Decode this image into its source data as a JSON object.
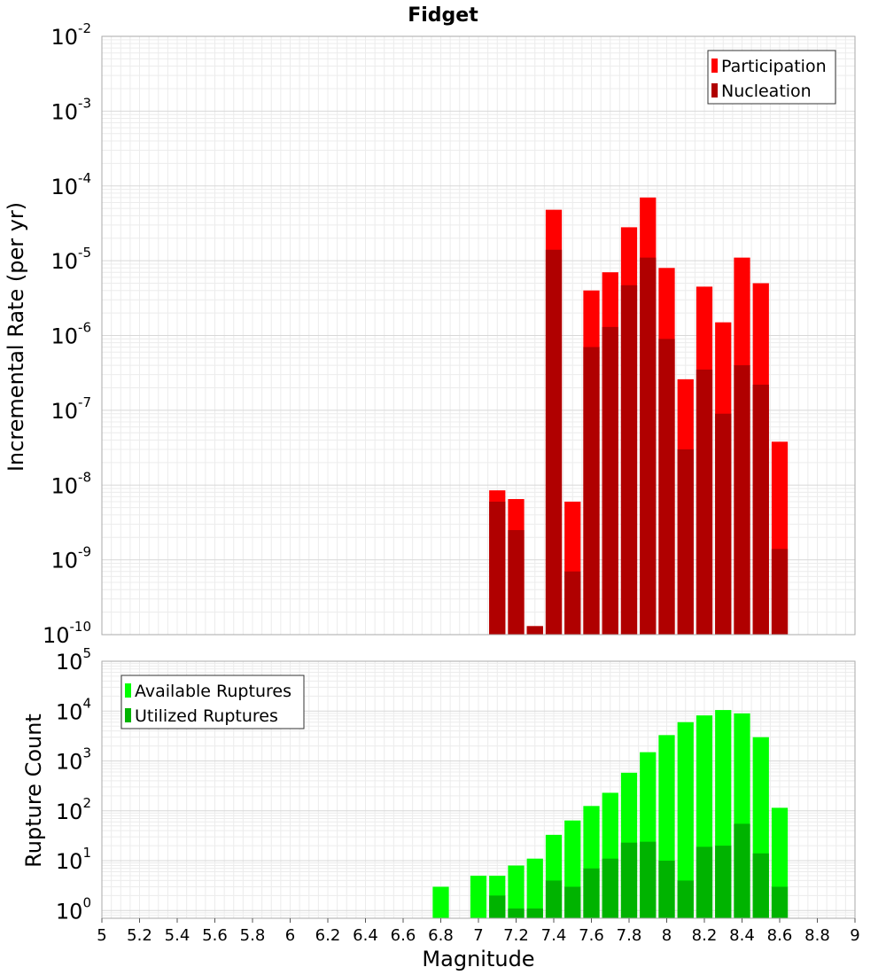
{
  "chart_data": [
    {
      "type": "bar",
      "title": "Fidget",
      "xlabel": "",
      "ylabel": "Incremental Rate (per yr)",
      "xlim": [
        5,
        9
      ],
      "ylim": [
        1e-10,
        0.01
      ],
      "yscale": "log",
      "grid": true,
      "legend_position": "top-right",
      "bar_width": 0.1,
      "y_ticks": [
        {
          "base": "10",
          "exp": "-10"
        },
        {
          "base": "10",
          "exp": "-9"
        },
        {
          "base": "10",
          "exp": "-8"
        },
        {
          "base": "10",
          "exp": "-7"
        },
        {
          "base": "10",
          "exp": "-6"
        },
        {
          "base": "10",
          "exp": "-5"
        },
        {
          "base": "10",
          "exp": "-4"
        },
        {
          "base": "10",
          "exp": "-3"
        },
        {
          "base": "10",
          "exp": "-2"
        }
      ],
      "x": [
        7.1,
        7.2,
        7.3,
        7.4,
        7.5,
        7.6,
        7.7,
        7.8,
        7.9,
        8.0,
        8.1,
        8.2,
        8.3,
        8.4,
        8.5,
        8.6
      ],
      "series": [
        {
          "name": "Participation",
          "color": "#ff0000",
          "values": [
            8.5e-09,
            6.5e-09,
            1.3e-10,
            4.8e-05,
            6e-09,
            4e-06,
            7e-06,
            2.8e-05,
            7e-05,
            8e-06,
            2.6e-07,
            4.5e-06,
            1.5e-06,
            1.1e-05,
            5e-06,
            3.8e-08
          ]
        },
        {
          "name": "Nucleation",
          "color": "#b00000",
          "values": [
            6e-09,
            2.5e-09,
            1.3e-10,
            1.4e-05,
            7e-10,
            7e-07,
            1.3e-06,
            4.7e-06,
            1.1e-05,
            9e-07,
            3e-08,
            3.5e-07,
            9e-08,
            4e-07,
            2.2e-07,
            1.4e-09
          ]
        }
      ]
    },
    {
      "type": "bar",
      "title": "",
      "xlabel": "Magnitude",
      "ylabel": "Rupture Count",
      "xlim": [
        5,
        9
      ],
      "ylim": [
        0.7,
        100000.0
      ],
      "yscale": "log",
      "grid": true,
      "legend_position": "top-left",
      "bar_width": 0.1,
      "x_ticks": [
        "5",
        "5.2",
        "5.4",
        "5.6",
        "5.8",
        "6",
        "6.2",
        "6.4",
        "6.6",
        "6.8",
        "7",
        "7.2",
        "7.4",
        "7.6",
        "7.8",
        "8",
        "8.2",
        "8.4",
        "8.6",
        "8.8",
        "9"
      ],
      "y_ticks": [
        {
          "base": "10",
          "exp": "0"
        },
        {
          "base": "10",
          "exp": "1"
        },
        {
          "base": "10",
          "exp": "2"
        },
        {
          "base": "10",
          "exp": "3"
        },
        {
          "base": "10",
          "exp": "4"
        },
        {
          "base": "10",
          "exp": "5"
        }
      ],
      "x": [
        6.8,
        7.0,
        7.1,
        7.2,
        7.3,
        7.4,
        7.5,
        7.6,
        7.7,
        7.8,
        7.9,
        8.0,
        8.1,
        8.2,
        8.3,
        8.4,
        8.5,
        8.6
      ],
      "series": [
        {
          "name": "Available Ruptures",
          "color": "#00ff00",
          "values": [
            3,
            5,
            5,
            8,
            11,
            33,
            64,
            125,
            230,
            580,
            1500,
            3300,
            6000,
            8200,
            10500,
            9000,
            3000,
            115
          ]
        },
        {
          "name": "Utilized Ruptures",
          "color": "#00b300",
          "values": [
            0,
            0,
            2,
            1.1,
            1.1,
            4,
            3,
            7,
            11,
            23,
            24,
            10,
            4,
            19,
            20,
            55,
            14,
            3
          ]
        }
      ]
    }
  ]
}
